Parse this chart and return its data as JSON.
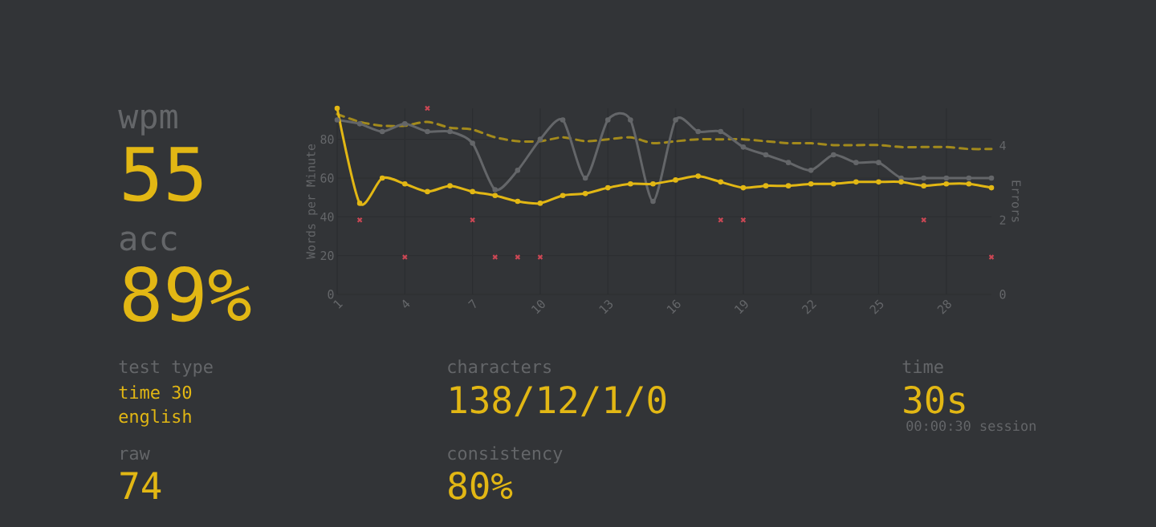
{
  "chart_data": {
    "type": "line",
    "x": [
      1,
      2,
      3,
      4,
      5,
      6,
      7,
      8,
      9,
      10,
      11,
      12,
      13,
      14,
      15,
      16,
      17,
      18,
      19,
      20,
      21,
      22,
      23,
      24,
      25,
      26,
      27,
      28,
      29,
      30
    ],
    "xlim": [
      1,
      30
    ],
    "xticks": [
      1,
      4,
      7,
      10,
      13,
      16,
      19,
      22,
      25,
      28
    ],
    "ylim": [
      0,
      96
    ],
    "yticks": [
      0,
      20,
      40,
      60,
      80
    ],
    "y2lim": [
      0,
      5
    ],
    "y2ticks": [
      0,
      2,
      4
    ],
    "ylabel": "Words per Minute",
    "y2label": "Errors",
    "grid": true,
    "series": [
      {
        "color": "#a38a1c",
        "line_style": "dashed",
        "marker": "none",
        "values": [
          93,
          89,
          87,
          87,
          89,
          86,
          85,
          81,
          79,
          79,
          81,
          79,
          80,
          81,
          78,
          79,
          80,
          80,
          80,
          79,
          78,
          78,
          77,
          77,
          77,
          76,
          76,
          76,
          75,
          75
        ]
      },
      {
        "color": "#646669",
        "line_style": "solid",
        "marker": "circle",
        "values": [
          90,
          88,
          84,
          88,
          84,
          84,
          78,
          54,
          64,
          80,
          90,
          60,
          90,
          90,
          48,
          90,
          84,
          84,
          76,
          72,
          68,
          64,
          72,
          68,
          68,
          60,
          60,
          60,
          60,
          60
        ]
      },
      {
        "color": "#e2b714",
        "line_style": "solid",
        "marker": "circle",
        "values": [
          96,
          47,
          60,
          57,
          53,
          56,
          53,
          51,
          48,
          47,
          51,
          52,
          55,
          57,
          57,
          59,
          61,
          58,
          55,
          56,
          56,
          57,
          57,
          58,
          58,
          58,
          56,
          57,
          57,
          55
        ]
      },
      {
        "type": "scatter",
        "axis": "y2",
        "color": "#ca4754",
        "marker": "cross",
        "x": [
          2,
          4,
          5,
          7,
          8,
          9,
          10,
          18,
          19,
          27,
          30
        ],
        "values": [
          2,
          1,
          5,
          2,
          1,
          1,
          1,
          2,
          2,
          2,
          1
        ]
      }
    ],
    "annotations": [
      "wpm",
      "55",
      "acc",
      "89%",
      "test type",
      "time 30",
      "english",
      "raw",
      "74",
      "characters",
      "138/12/1/0",
      "consistency",
      "80%",
      "time",
      "30s",
      "00:00:30 session"
    ]
  }
}
